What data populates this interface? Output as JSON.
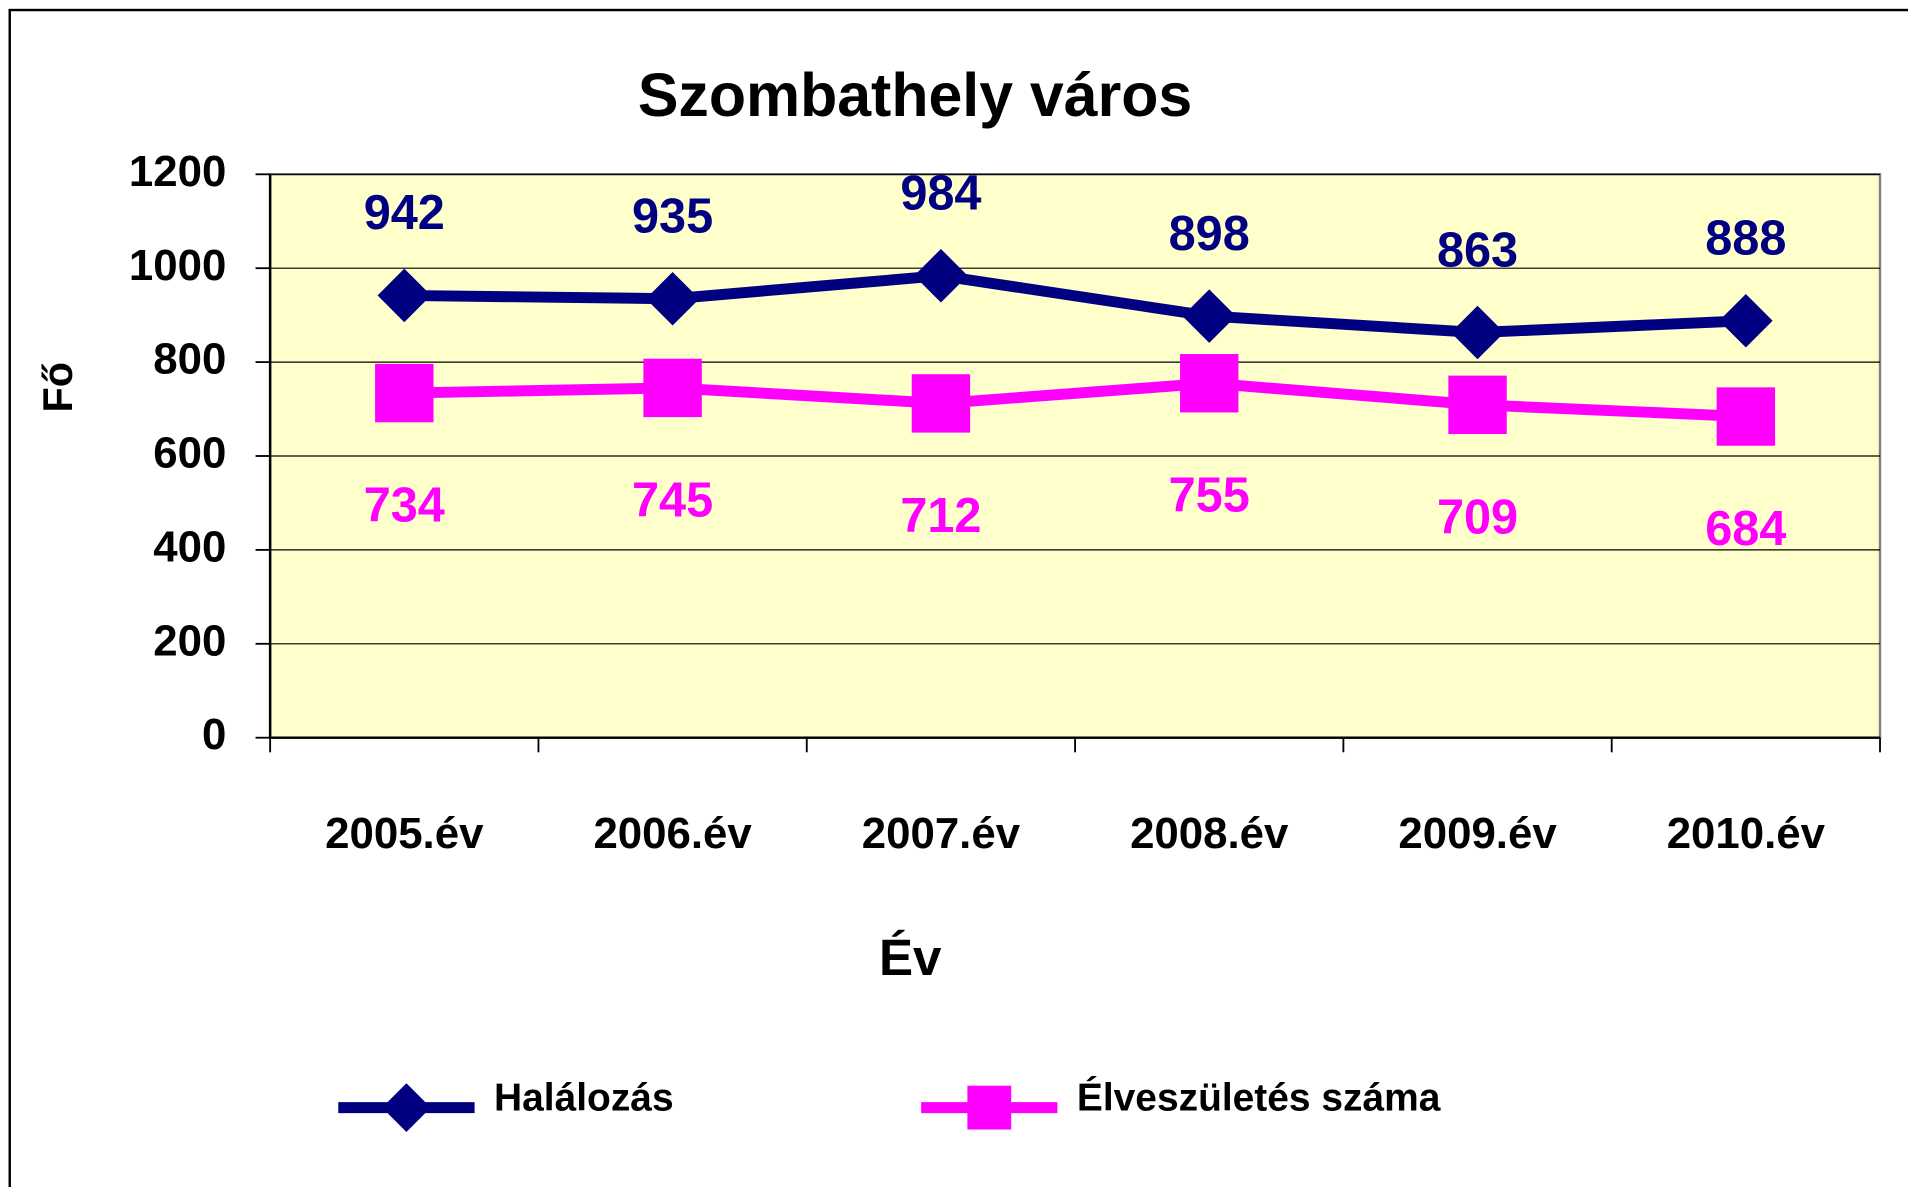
{
  "chart_data": {
    "type": "line",
    "title": "Szombathely város",
    "x_label": "Év",
    "y_label": "Fő",
    "categories": [
      "2005.év",
      "2006.év",
      "2007.év",
      "2008.év",
      "2009.év",
      "2010.év"
    ],
    "series": [
      {
        "name": "Halálozás",
        "color": "#000080",
        "marker": "diamond",
        "values": [
          942,
          935,
          984,
          898,
          863,
          888
        ]
      },
      {
        "name": "Élveszületés száma",
        "color": "#ff00ff",
        "marker": "square",
        "values": [
          734,
          745,
          712,
          755,
          709,
          684
        ]
      }
    ],
    "ylim": [
      0,
      1200
    ],
    "yticks": [
      0,
      200,
      400,
      600,
      800,
      1000,
      1200
    ],
    "grid": true,
    "legend": "bottom",
    "plot_background": "#ffffcc"
  }
}
